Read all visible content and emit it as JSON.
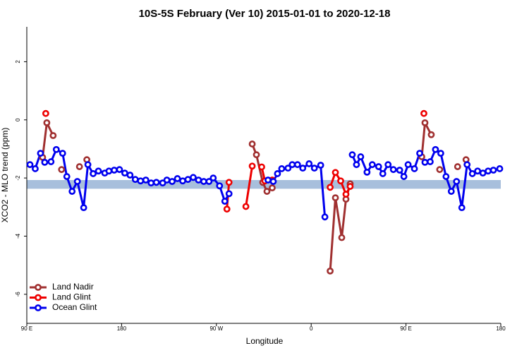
{
  "chart_data": {
    "type": "line",
    "title": "10S-5S February (Ver 10)   2015-01-01 to 2020-12-18",
    "x_label": "Longitude",
    "y_label": "XCO2 - MLO trend (ppm)",
    "xlim": [
      90,
      540
    ],
    "xticks": [
      {
        "value": 90,
        "label": "90 E"
      },
      {
        "value": 180,
        "label": "180"
      },
      {
        "value": 270,
        "label": "90 W"
      },
      {
        "value": 360,
        "label": "0"
      },
      {
        "value": 450,
        "label": "90 E"
      },
      {
        "value": 540,
        "label": "180"
      }
    ],
    "ylim": [
      -7,
      3.2
    ],
    "yticks": [
      -6,
      -4,
      -2,
      0,
      2
    ],
    "reference_band": {
      "ymin": -2.37,
      "ymax": -2.07,
      "color": "#a8bfdc"
    },
    "legend": "bottom-left",
    "series": [
      {
        "name": "Land Nadir",
        "color": "#a03030",
        "x": [
          105,
          109,
          115,
          null,
          123,
          null,
          140,
          null,
          147,
          null,
          304,
          308,
          314,
          318,
          323,
          null,
          378,
          383,
          389,
          393,
          397,
          null,
          465,
          468,
          474,
          null,
          482,
          null,
          499,
          null,
          507
        ],
        "values": [
          -1.29,
          -0.1,
          -0.54,
          null,
          -1.71,
          null,
          -1.61,
          null,
          -1.37,
          null,
          -0.83,
          -1.2,
          -2.15,
          -2.46,
          -2.34,
          null,
          -5.2,
          -2.68,
          -4.05,
          -2.73,
          -2.2,
          null,
          -1.27,
          -0.1,
          -0.51,
          null,
          -1.71,
          null,
          -1.61,
          null,
          -1.37
        ]
      },
      {
        "name": "Land Glint",
        "color": "#ee0000",
        "x": [
          108,
          null,
          280,
          282,
          null,
          298,
          304,
          null,
          313,
          316,
          323,
          null,
          378,
          383,
          388,
          393,
          397,
          null,
          467
        ],
        "values": [
          0.22,
          null,
          -3.07,
          -2.15,
          null,
          -2.98,
          -1.59,
          null,
          -1.62,
          -2.1,
          -2.07,
          null,
          -2.32,
          -1.81,
          -2.1,
          -2.56,
          -2.29,
          null,
          0.22
        ]
      },
      {
        "name": "Ocean Glint",
        "color": "#0000ee",
        "x": [
          93,
          98,
          103,
          107,
          113,
          118,
          124,
          128,
          133,
          138,
          144,
          148,
          153,
          158,
          164,
          168,
          173,
          178,
          183,
          188,
          193,
          198,
          203,
          208,
          213,
          219,
          223,
          228,
          233,
          238,
          243,
          248,
          253,
          258,
          263,
          267,
          273,
          278,
          282,
          null,
          319,
          324,
          328,
          332,
          338,
          342,
          347,
          352,
          358,
          363,
          369,
          373,
          null,
          399,
          403,
          407,
          413,
          418,
          424,
          428,
          433,
          438,
          444,
          448,
          452,
          458,
          463,
          468,
          473,
          478,
          483,
          488,
          493,
          498,
          503,
          508,
          513,
          518,
          523,
          528,
          533,
          539
        ],
        "values": [
          -1.54,
          -1.68,
          -1.15,
          -1.46,
          -1.44,
          -1.02,
          -1.15,
          -1.95,
          -2.46,
          -2.12,
          -3.02,
          -1.54,
          -1.85,
          -1.76,
          -1.83,
          -1.76,
          -1.73,
          -1.71,
          -1.83,
          -1.9,
          -2.05,
          -2.1,
          -2.07,
          -2.17,
          -2.15,
          -2.17,
          -2.07,
          -2.12,
          -2.02,
          -2.1,
          -2.05,
          -1.98,
          -2.07,
          -2.12,
          -2.12,
          -2.0,
          -2.27,
          -2.8,
          -2.54,
          null,
          -2.07,
          -2.12,
          -1.85,
          -1.68,
          -1.66,
          -1.54,
          -1.54,
          -1.66,
          -1.51,
          -1.66,
          -1.56,
          -3.34,
          null,
          -1.2,
          -1.54,
          -1.27,
          -1.8,
          -1.54,
          -1.61,
          -1.85,
          -1.54,
          -1.71,
          -1.73,
          -1.95,
          -1.54,
          -1.68,
          -1.15,
          -1.46,
          -1.44,
          -1.02,
          -1.15,
          -1.95,
          -2.46,
          -2.12,
          -3.02,
          -1.54,
          -1.85,
          -1.76,
          -1.83,
          -1.76,
          -1.73,
          -1.68
        ]
      }
    ]
  }
}
